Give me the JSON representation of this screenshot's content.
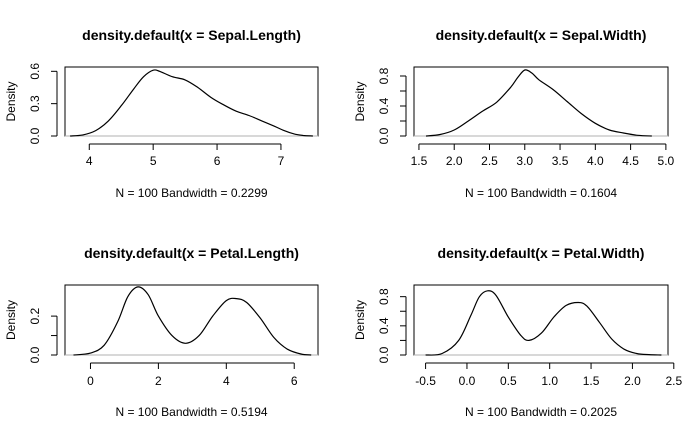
{
  "chart_data": [
    {
      "type": "line",
      "title": "density.default(x = Sepal.Length)",
      "xlabel": "N = 100   Bandwidth = 0.2299",
      "ylabel": "Density",
      "xlim": [
        3.62,
        7.58
      ],
      "ylim": [
        0,
        0.64
      ],
      "xticks": [
        4,
        5,
        6,
        7
      ],
      "yticks": [
        0.0,
        0.3,
        0.6
      ],
      "yticklabels": [
        "0.0",
        "0.3",
        "0.6"
      ],
      "x": [
        3.7,
        3.9,
        4.1,
        4.3,
        4.5,
        4.7,
        4.85,
        5.0,
        5.1,
        5.3,
        5.5,
        5.7,
        5.9,
        6.1,
        6.3,
        6.5,
        6.7,
        6.9,
        7.05,
        7.2,
        7.35,
        7.5
      ],
      "y": [
        0.0,
        0.01,
        0.05,
        0.14,
        0.28,
        0.44,
        0.55,
        0.61,
        0.6,
        0.55,
        0.52,
        0.45,
        0.36,
        0.29,
        0.23,
        0.19,
        0.14,
        0.09,
        0.05,
        0.02,
        0.005,
        0.0
      ]
    },
    {
      "type": "line",
      "title": "density.default(x = Sepal.Width)",
      "xlabel": "N = 100   Bandwidth = 0.1604",
      "ylabel": "Density",
      "xlim": [
        1.43,
        5.03
      ],
      "ylim": [
        0,
        0.92
      ],
      "xticks": [
        1.5,
        2.0,
        2.5,
        3.0,
        3.5,
        4.0,
        4.5,
        5.0
      ],
      "xticklabels": [
        "1.5",
        "2.0",
        "2.5",
        "3.0",
        "3.5",
        "4.0",
        "4.5",
        "5.0"
      ],
      "yticks": [
        0.0,
        0.2,
        0.4,
        0.6,
        0.8
      ],
      "yticklabels": [
        "0.0",
        "",
        "0.4",
        "",
        "0.8"
      ],
      "x": [
        1.6,
        1.8,
        2.0,
        2.2,
        2.4,
        2.6,
        2.8,
        2.9,
        3.0,
        3.1,
        3.2,
        3.4,
        3.6,
        3.8,
        4.0,
        4.2,
        4.4,
        4.6,
        4.8
      ],
      "y": [
        0.0,
        0.02,
        0.08,
        0.2,
        0.33,
        0.45,
        0.65,
        0.78,
        0.88,
        0.84,
        0.75,
        0.62,
        0.46,
        0.3,
        0.17,
        0.08,
        0.04,
        0.01,
        0.0
      ]
    },
    {
      "type": "line",
      "title": "density.default(x = Petal.Length)",
      "xlabel": "N = 100   Bandwidth = 0.5194",
      "ylabel": "Density",
      "xlim": [
        -0.75,
        6.7
      ],
      "ylim": [
        0,
        0.36
      ],
      "xticks": [
        0,
        2,
        4,
        6
      ],
      "yticks": [
        0.0,
        0.1,
        0.2
      ],
      "yticklabels": [
        "0.0",
        "",
        "0.2"
      ],
      "x": [
        -0.5,
        0.0,
        0.4,
        0.8,
        1.1,
        1.4,
        1.7,
        2.0,
        2.4,
        2.8,
        3.2,
        3.6,
        4.0,
        4.3,
        4.6,
        5.0,
        5.4,
        5.8,
        6.2,
        6.5
      ],
      "y": [
        0.0,
        0.01,
        0.05,
        0.17,
        0.3,
        0.35,
        0.31,
        0.2,
        0.1,
        0.06,
        0.1,
        0.2,
        0.28,
        0.29,
        0.27,
        0.19,
        0.09,
        0.03,
        0.005,
        0.0
      ]
    },
    {
      "type": "line",
      "title": "density.default(x = Petal.Width)",
      "xlabel": "N = 100   Bandwidth = 0.2025",
      "ylabel": "Density",
      "xlim": [
        -0.64,
        2.43
      ],
      "ylim": [
        0,
        0.96
      ],
      "xticks": [
        -0.5,
        0.0,
        0.5,
        1.0,
        1.5,
        2.0,
        2.5
      ],
      "xticklabels": [
        "-0.5",
        "0.0",
        "0.5",
        "1.0",
        "1.5",
        "2.0",
        "2.5"
      ],
      "yticks": [
        0.0,
        0.2,
        0.4,
        0.6,
        0.8
      ],
      "yticklabels": [
        "0.0",
        "",
        "0.4",
        "",
        "0.8"
      ],
      "x": [
        -0.5,
        -0.3,
        -0.1,
        0.05,
        0.15,
        0.25,
        0.35,
        0.5,
        0.65,
        0.75,
        0.9,
        1.05,
        1.2,
        1.35,
        1.45,
        1.6,
        1.75,
        1.9,
        2.05,
        2.2,
        2.35
      ],
      "y": [
        0.0,
        0.02,
        0.2,
        0.55,
        0.8,
        0.88,
        0.82,
        0.52,
        0.27,
        0.2,
        0.3,
        0.52,
        0.68,
        0.72,
        0.67,
        0.45,
        0.22,
        0.08,
        0.02,
        0.005,
        0.0
      ]
    }
  ]
}
